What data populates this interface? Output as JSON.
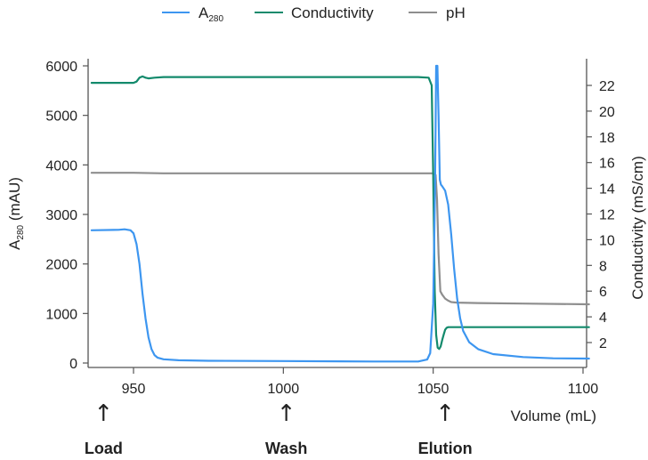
{
  "chart_data": {
    "type": "line",
    "title": "",
    "legend": {
      "position": "top",
      "entries": [
        {
          "name": "A",
          "subscript": "280",
          "color": "#3d96f0"
        },
        {
          "name": "Conductivity",
          "subscript": "",
          "color": "#138a6c"
        },
        {
          "name": "pH",
          "subscript": "",
          "color": "#8e8e8e"
        }
      ]
    },
    "xlabel": "Volume (mL)",
    "xlim": [
      936,
      1102
    ],
    "xticks": [
      950,
      1000,
      1050,
      1100
    ],
    "xtick_labels": [
      "950",
      "1000",
      "1050",
      "1100"
    ],
    "ylabel_left": {
      "main": "A",
      "subscript": "280",
      "suffix": " (mAU)"
    },
    "ylim_left": [
      0,
      6000
    ],
    "yticks_left": [
      0,
      1000,
      2000,
      3000,
      4000,
      5000,
      6000
    ],
    "ytick_labels_left": [
      "0",
      "1000",
      "2000",
      "3000",
      "4000",
      "5000",
      "6000"
    ],
    "ylabel_right": "Conductivity (mS/cm)",
    "ylim_right": [
      0,
      23.8
    ],
    "yticks_right": [
      2,
      4,
      6,
      8,
      10,
      12,
      14,
      16,
      18,
      20,
      22
    ],
    "ytick_labels_right": [
      "2",
      "4",
      "6",
      "8",
      "10",
      "12",
      "14",
      "16",
      "18",
      "20",
      "22"
    ],
    "grid": false,
    "series": [
      {
        "name": "A280",
        "axis": "left",
        "color": "#3d96f0",
        "x": [
          936,
          945,
          947,
          949,
          950,
          951,
          952,
          953,
          954,
          955,
          956,
          957,
          958,
          960,
          965,
          975,
          1000,
          1030,
          1045,
          1048,
          1049,
          1050,
          1050.6,
          1051,
          1051.4,
          1051.8,
          1052.2,
          1052.6,
          1053,
          1054,
          1055,
          1056,
          1057,
          1058,
          1059,
          1060,
          1062,
          1065,
          1070,
          1080,
          1090,
          1102
        ],
        "y": [
          2680,
          2690,
          2700,
          2680,
          2620,
          2400,
          2000,
          1400,
          900,
          520,
          280,
          160,
          110,
          75,
          55,
          45,
          40,
          30,
          30,
          70,
          200,
          1200,
          3500,
          6000,
          6000,
          5000,
          3700,
          3600,
          3570,
          3480,
          3200,
          2600,
          1900,
          1300,
          900,
          650,
          420,
          280,
          180,
          120,
          95,
          90
        ]
      },
      {
        "name": "Conductivity",
        "axis": "right",
        "color": "#138a6c",
        "x": [
          936,
          950,
          951,
          952,
          953,
          954,
          955,
          957,
          960,
          980,
          1000,
          1030,
          1045,
          1048.5,
          1049.5,
          1050,
          1050.5,
          1051,
          1051.5,
          1052,
          1052.5,
          1053,
          1053.5,
          1054,
          1054.5,
          1055,
          1056,
          1060,
          1080,
          1102
        ],
        "y": [
          22.2,
          22.2,
          22.3,
          22.6,
          22.7,
          22.6,
          22.55,
          22.6,
          22.65,
          22.65,
          22.65,
          22.65,
          22.65,
          22.6,
          22.0,
          15.0,
          6.0,
          2.6,
          1.6,
          1.5,
          1.7,
          2.2,
          2.6,
          3.0,
          3.15,
          3.2,
          3.2,
          3.2,
          3.2,
          3.2
        ]
      },
      {
        "name": "pH",
        "axis": "left",
        "color": "#8e8e8e",
        "x": [
          936,
          950,
          960,
          1000,
          1040,
          1050,
          1050.8,
          1051.3,
          1051.8,
          1052.4,
          1053,
          1054,
          1055,
          1056,
          1058,
          1065,
          1080,
          1102
        ],
        "y": [
          3840,
          3840,
          3830,
          3830,
          3830,
          3830,
          3800,
          3300,
          2200,
          1450,
          1380,
          1300,
          1260,
          1230,
          1220,
          1210,
          1200,
          1185
        ]
      }
    ],
    "annotations": [
      {
        "label": "Load",
        "x": 940,
        "arrow": "↑"
      },
      {
        "label": "Wash",
        "x": 1001,
        "arrow": "↑"
      },
      {
        "label": "Elution",
        "x": 1054,
        "arrow": "↑"
      }
    ]
  }
}
